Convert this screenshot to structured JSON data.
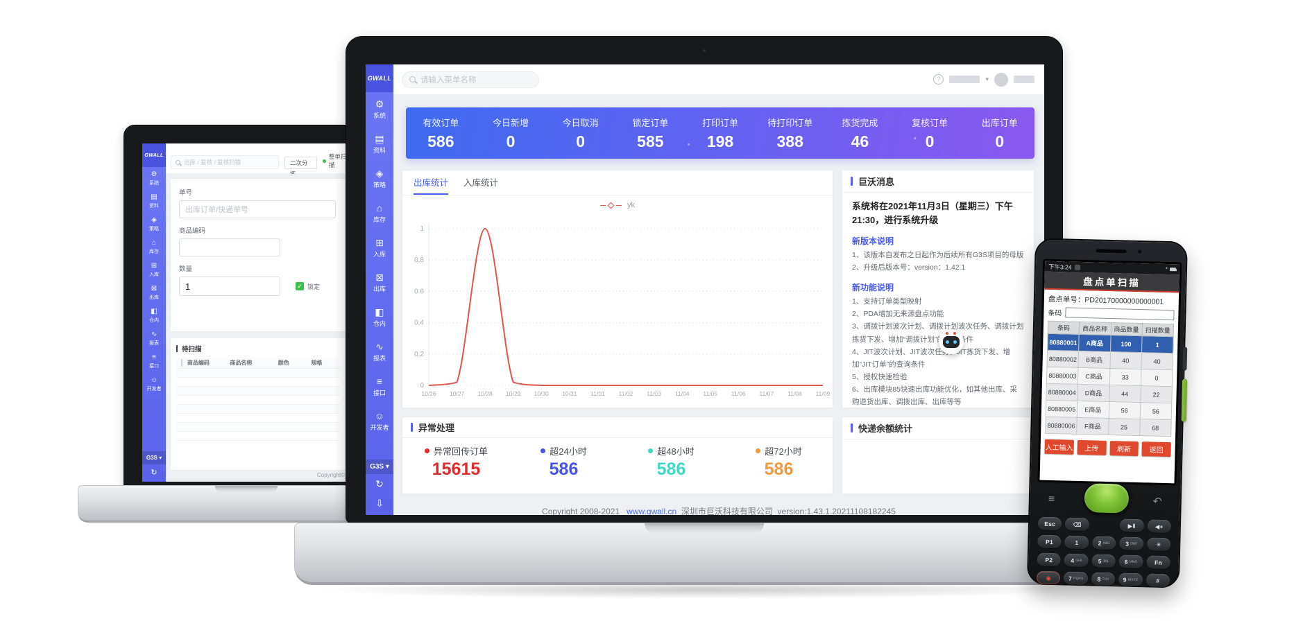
{
  "brand": {
    "logo": "GWALL"
  },
  "sidebar": {
    "env_label": "G3S",
    "items": [
      {
        "label": "系统",
        "glyph": "⚙"
      },
      {
        "label": "资料",
        "glyph": "▤"
      },
      {
        "label": "策略",
        "glyph": "◈"
      },
      {
        "label": "库存",
        "glyph": "⌂"
      },
      {
        "label": "入库",
        "glyph": "⊞"
      },
      {
        "label": "出库",
        "glyph": "⊠"
      },
      {
        "label": "仓内",
        "glyph": "◧"
      },
      {
        "label": "报表",
        "glyph": "∿"
      },
      {
        "label": "接口",
        "glyph": "≡"
      },
      {
        "label": "开发者",
        "glyph": "☺"
      }
    ],
    "tools": {
      "refresh": "↻",
      "download": "⇩",
      "dropdown": "▾"
    }
  },
  "laptop_left": {
    "search_text": "出库 / 复核 / 复核扫描",
    "action_secondary_sort": "二次分拣",
    "action_whole_scan": "整单扫描",
    "form": {
      "order_label": "单号",
      "order_placeholder": "出库订单/快递单号",
      "sku_label": "商品编码",
      "qty_label": "数量",
      "qty_value": "1",
      "lock_label": "锁定",
      "check_glyph": "✓"
    },
    "pending": {
      "title": "待扫描",
      "columns": [
        "商品编码",
        "商品名称",
        "颜色",
        "规格"
      ],
      "empty_rows": 8
    },
    "footer": "Copyright©"
  },
  "dashboard": {
    "search_placeholder": "请输入菜单名称",
    "stats": [
      {
        "label": "有效订单",
        "value": "586"
      },
      {
        "label": "今日新增",
        "value": "0"
      },
      {
        "label": "今日取消",
        "value": "0"
      },
      {
        "label": "锁定订单",
        "value": "585"
      },
      {
        "label": "打印订单",
        "value": "198"
      },
      {
        "label": "待打印订单",
        "value": "388"
      },
      {
        "label": "拣货完成",
        "value": "46"
      },
      {
        "label": "复核订单",
        "value": "0"
      },
      {
        "label": "出库订单",
        "value": "0"
      }
    ],
    "chart_card": {
      "tabs": [
        "出库统计",
        "入库统计"
      ],
      "active_tab": "出库统计"
    },
    "messages": {
      "title": "巨沃消息",
      "headline": "系统将在2021年11月3日（星期三）下午21:30，进行系统升级",
      "sections": [
        {
          "heading": "新版本说明",
          "items": [
            "1、该版本自发布之日起作为后续所有G3S项目的母版",
            "2、升级后版本号：version：1.42.1"
          ]
        },
        {
          "heading": "新功能说明",
          "items": [
            "1、支持订单类型映射",
            "2、PDA增加无来源盘点功能",
            "3、调拨计划波次计划、调拨计划波次任务、调拨计划拣货下发、增加“调拨计划”的查询条件",
            "4、JIT波次计划、JIT波次任务、JIT拣货下发、增加“JIT订单”的查询条件",
            "5、授权快速检验",
            "6、出库模块85快速出库功能优化，如其他出库、采购退货出库、调拨出库、出库等等"
          ]
        }
      ]
    },
    "exceptions": {
      "title": "异常处理",
      "items": [
        {
          "label": "异常回传订单",
          "value": "15615",
          "color": "#e02b2b"
        },
        {
          "label": "超24小时",
          "value": "586",
          "color": "#4653ee"
        },
        {
          "label": "超48小时",
          "value": "586",
          "color": "#41d8c6"
        },
        {
          "label": "超72小时",
          "value": "586",
          "color": "#f2993c"
        }
      ]
    },
    "courier": {
      "title": "快递余额统计"
    },
    "footer": {
      "copyright": "Copyright 2008-2021",
      "link": "www.gwall.cn",
      "company": "深圳市巨沃科技有限公司",
      "version": "version:1.43.1.20211108182245"
    }
  },
  "chart_data": {
    "type": "line",
    "title": "出库统计",
    "x": [
      "10/26",
      "10/27",
      "10/28",
      "10/29",
      "10/30",
      "10/31",
      "11/01",
      "11/02",
      "11/03",
      "11/04",
      "11/05",
      "11/06",
      "11/07",
      "11/08",
      "11/09"
    ],
    "series": [
      {
        "name": "yk",
        "color": "#e0564e",
        "values": [
          0,
          0.02,
          1,
          0.02,
          0,
          0,
          0,
          0,
          0,
          0,
          0,
          0,
          0,
          0,
          0
        ]
      }
    ],
    "ylim": [
      0,
      1
    ],
    "yticks": [
      0,
      0.2,
      0.4,
      0.6,
      0.8,
      1
    ],
    "grid": "horizontal-dotted",
    "legend_position": "top-center"
  },
  "pda": {
    "status": {
      "time": "下午3:24"
    },
    "title": "盘点单扫描",
    "doc": {
      "label": "盘点单号：",
      "value": "PD20170000000000001"
    },
    "barcode_label": "条码",
    "table": {
      "columns": [
        "条码",
        "商品名称",
        "商品数量",
        "扫描数量"
      ],
      "selected_row": 0,
      "rows": [
        [
          "80880001",
          "A商品",
          "100",
          "1"
        ],
        [
          "80880002",
          "B商品",
          "40",
          "40"
        ],
        [
          "80880003",
          "C商品",
          "33",
          "0"
        ],
        [
          "80880004",
          "D商品",
          "44",
          "22"
        ],
        [
          "80880005",
          "E商品",
          "56",
          "56"
        ],
        [
          "80880006",
          "F商品",
          "25",
          "68"
        ]
      ]
    },
    "buttons": [
      "人工输入",
      "上传",
      "刷新",
      "返回"
    ],
    "nav": {
      "menu": "≡",
      "back": "↶"
    },
    "keypad": [
      [
        {
          "main": "Esc"
        },
        {
          "main": "⌫"
        },
        {
          "main": ""
        },
        {
          "main": "▶‖"
        },
        {
          "main": "◀+"
        }
      ],
      [
        {
          "main": "P1"
        },
        {
          "main": "1"
        },
        {
          "main": "2",
          "sub": "ABC"
        },
        {
          "main": "3",
          "sub": "DEF"
        },
        {
          "main": "✳"
        }
      ],
      [
        {
          "main": "P2"
        },
        {
          "main": "4",
          "sub": "GHI"
        },
        {
          "main": "5",
          "sub": "JKL"
        },
        {
          "main": "6",
          "sub": "MNO"
        },
        {
          "main": "Fn"
        }
      ],
      [
        {
          "main": "◉",
          "accent": true
        },
        {
          "main": "7",
          "sub": "PQRS"
        },
        {
          "main": "8",
          "sub": "TUV"
        },
        {
          "main": "9",
          "sub": "WXYZ"
        },
        {
          "main": "#"
        }
      ]
    ]
  }
}
